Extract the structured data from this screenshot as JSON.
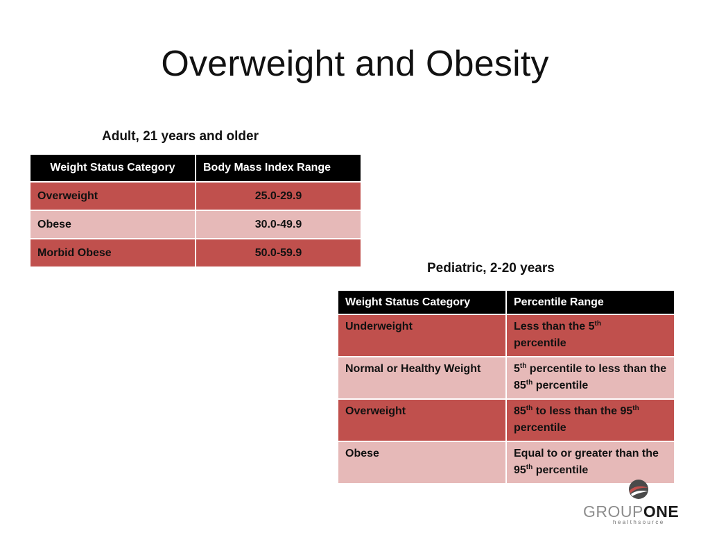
{
  "title": "Overweight and Obesity",
  "adult": {
    "heading": "Adult, 21 years and older",
    "columns": [
      "Weight Status Category",
      "Body Mass Index Range"
    ],
    "rows": [
      {
        "category": "Overweight",
        "range": "25.0-29.9"
      },
      {
        "category": "Obese",
        "range": "30.0-49.9"
      },
      {
        "category": "Morbid Obese",
        "range": "50.0-59.9"
      }
    ]
  },
  "pediatric": {
    "heading": "Pediatric, 2-20 years",
    "columns": [
      "Weight Status Category",
      "Percentile Range"
    ],
    "rows": [
      {
        "category": "Underweight",
        "range_a": "Less than the 5",
        "sup_a": "th",
        "range_b": "percentile",
        "sup_b": "",
        "range_c": ""
      },
      {
        "category": "Normal or Healthy Weight",
        "range_a": "5",
        "sup_a": "th",
        "range_b": " percentile to less than the 85",
        "sup_b": "th",
        "range_c": " percentile"
      },
      {
        "category": "Overweight",
        "range_a": "85",
        "sup_a": "th",
        "range_b": " to less than the 95",
        "sup_b": "th",
        "range_c": " percentile"
      },
      {
        "category": "Obese",
        "range_a": "Equal to or greater than the 95",
        "sup_a": "th",
        "range_b": " percentile",
        "sup_b": "",
        "range_c": ""
      }
    ]
  },
  "logo": {
    "word_a": "GROUP",
    "word_b": "ONE",
    "tagline": "healthsource"
  },
  "colors": {
    "header_bg": "#000000",
    "row_dark": "#c0504d",
    "row_light": "#e6b9b8"
  }
}
